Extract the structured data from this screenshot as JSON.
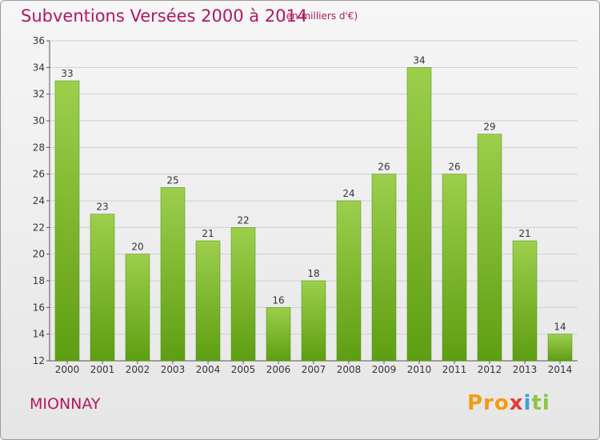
{
  "header": {
    "title": "Subventions Versées 2000 à 2014",
    "unit_note": "(en milliers d'€)"
  },
  "footer": {
    "town": "MIONNAY",
    "logo_text": "Proxiti"
  },
  "colors": {
    "title": "#b2185e",
    "bar_top": "#9ccf4c",
    "bar_bottom": "#5e9e12",
    "grid": "#cfcfcf"
  },
  "chart_data": {
    "type": "bar",
    "title": "Subventions Versées 2000 à 2014",
    "subtitle": "(en milliers d'€)",
    "xlabel": "",
    "ylabel": "",
    "categories": [
      "2000",
      "2001",
      "2002",
      "2003",
      "2004",
      "2005",
      "2006",
      "2007",
      "2008",
      "2009",
      "2010",
      "2011",
      "2012",
      "2013",
      "2014"
    ],
    "values": [
      33,
      23,
      20,
      25,
      21,
      22,
      16,
      18,
      24,
      26,
      34,
      26,
      29,
      21,
      14
    ],
    "ylim": [
      12,
      36
    ],
    "yticks": [
      12,
      14,
      16,
      18,
      20,
      22,
      24,
      26,
      28,
      30,
      32,
      34,
      36
    ],
    "grid": true,
    "data_labels": true
  }
}
